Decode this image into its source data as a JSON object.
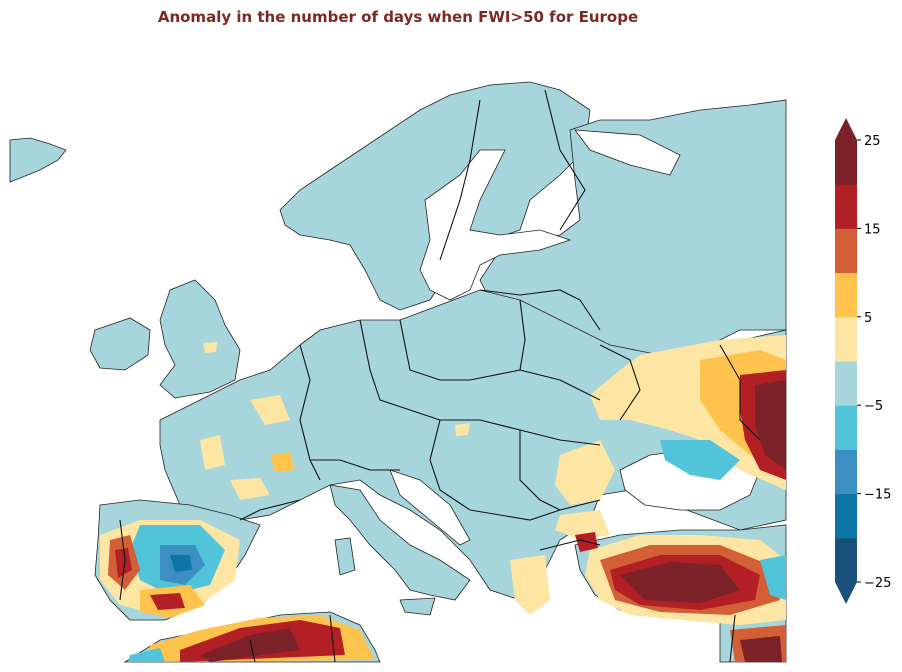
{
  "title": "Anomaly in the number of days when FWI>50 for Europe",
  "colors": {
    "sea": "#ffffff",
    "land_neutral": "#a6d6db",
    "border": "#111111",
    "coast": "#222222"
  },
  "colorbar": {
    "levels": [
      -25,
      -20,
      -15,
      -10,
      -5,
      0,
      5,
      10,
      15,
      20,
      25
    ],
    "colors": [
      "#175079",
      "#0e76a6",
      "#3b8fc2",
      "#52c4d9",
      "#a6d6db",
      "#fde6a3",
      "#fec34d",
      "#d35f36",
      "#b22026",
      "#7a2227"
    ],
    "extend": "both",
    "under_color": "#175079",
    "over_color": "#7a2227",
    "tick_labels": [
      "25",
      "15",
      "5",
      "−5",
      "−15",
      "−25"
    ],
    "tick_values": [
      25,
      15,
      5,
      -5,
      -15,
      -25
    ]
  }
}
